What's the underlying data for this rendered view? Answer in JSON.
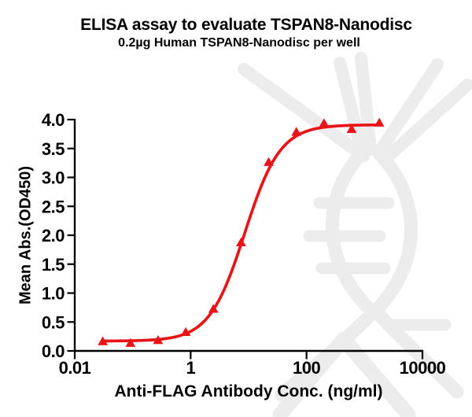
{
  "header": {
    "title": "ELISA assay to evaluate TSPAN8-Nanodisc",
    "subtitle": "0.2µg Human TSPAN8-Nanodisc per well"
  },
  "chart_data": {
    "type": "line",
    "title": "ELISA assay to evaluate TSPAN8-Nanodisc",
    "subtitle": "0.2µg Human TSPAN8-Nanodisc per well",
    "xlabel": "Anti-FLAG Antibody Conc. (ng/ml)",
    "ylabel": "Mean Abs.(OD450)",
    "x_scale": "log10",
    "xlim": [
      0.01,
      10000
    ],
    "ylim": [
      0.0,
      4.0
    ],
    "x_ticks": {
      "values": [
        0.01,
        1,
        100,
        10000
      ],
      "labels": [
        "0.01",
        "1",
        "100",
        "10000"
      ]
    },
    "y_ticks": {
      "values": [
        0,
        0.5,
        1,
        1.5,
        2,
        2.5,
        3,
        3.5,
        4
      ],
      "labels": [
        "0.0",
        "0.5",
        "1.0",
        "1.5",
        "2.0",
        "2.5",
        "3.0",
        "3.5",
        "4.0"
      ]
    },
    "grid": false,
    "legend": false,
    "series": [
      {
        "name": "0.2µg Human TSPAN8-Nanodisc per well",
        "marker": "filled-triangle-up",
        "color": "#e81417",
        "x": [
          0.0305,
          0.0914,
          0.274,
          0.823,
          2.47,
          7.41,
          22.2,
          66.7,
          200,
          600,
          1800
        ],
        "y": [
          0.17,
          0.14,
          0.19,
          0.33,
          0.73,
          1.88,
          3.27,
          3.79,
          3.94,
          3.84,
          3.95
        ]
      }
    ],
    "fit_curve": {
      "model": "4PL",
      "bottom": 0.17,
      "top": 3.91,
      "ec50": 8.6,
      "hill_slope": 1.42
    }
  },
  "colors": {
    "curve": "#e81417",
    "axis": "#000000",
    "text": "#000000",
    "watermark": "#ececec",
    "background": "#ffffff"
  }
}
